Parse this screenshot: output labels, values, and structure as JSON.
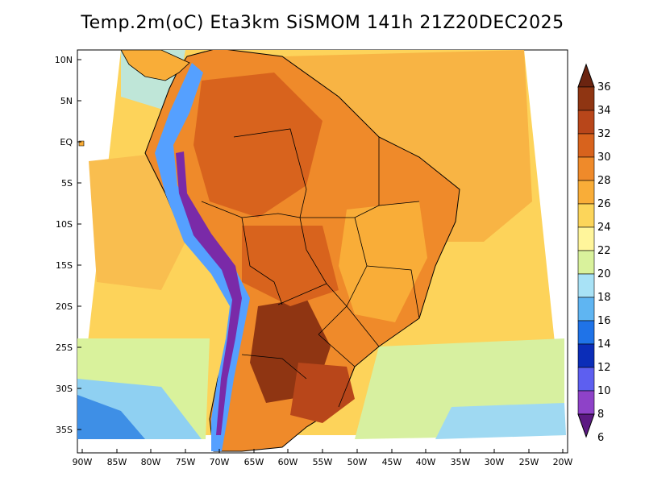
{
  "title": "Temp.2m(oC) Eta3km SiSMOM 141h 21Z20DEC2025",
  "map": {
    "lat_ticks": [
      "10N",
      "5N",
      "EQ",
      "5S",
      "10S",
      "15S",
      "20S",
      "25S",
      "30S",
      "35S"
    ],
    "lon_ticks": [
      "90W",
      "85W",
      "80W",
      "75W",
      "70W",
      "65W",
      "60W",
      "55W",
      "50W",
      "45W",
      "40W",
      "35W",
      "30W",
      "25W",
      "20W"
    ],
    "colors": {
      "ocean_warm": "#f7b646",
      "ocean_mid": "#ffd862",
      "ocean_cool": "#ffee99",
      "land_hot": "#d85a12",
      "land_very_hot": "#8b3311",
      "andes_cold": "#55a0ff",
      "andes_coldest": "#7a2aa8",
      "coast_line": "#000000"
    }
  },
  "colorbar": {
    "labels": [
      "36",
      "34",
      "32",
      "30",
      "28",
      "26",
      "24",
      "22",
      "20",
      "18",
      "16",
      "14",
      "12",
      "10",
      "8",
      "6"
    ],
    "colors": [
      "#6b2410",
      "#8f3512",
      "#b8461a",
      "#d8631d",
      "#ef8a2a",
      "#f9ad38",
      "#fcd55a",
      "#fff59b",
      "#d9f29c",
      "#a8e2f6",
      "#5fb5f2",
      "#1f73e8",
      "#0b2db8",
      "#5d5ff0",
      "#8e42c8",
      "#5c1a83"
    ]
  }
}
